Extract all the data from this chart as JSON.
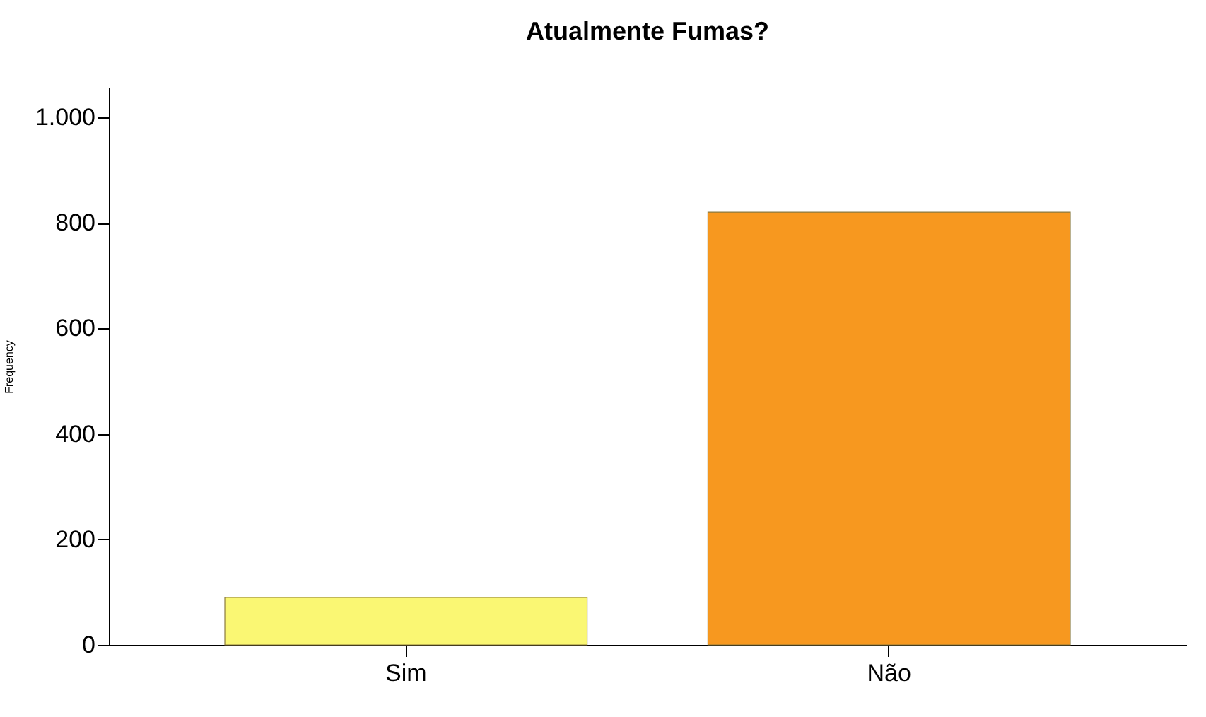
{
  "chart_data": {
    "type": "bar",
    "title": "Atualmente Fumas?",
    "ylabel": "Frequency",
    "categories": [
      "Sim",
      "Não"
    ],
    "values": [
      90,
      820
    ],
    "colors": [
      "#faf773",
      "#f7981f"
    ],
    "ylim": [
      0,
      1056
    ],
    "yticks": [
      0,
      200,
      400,
      600,
      800,
      {
        "value": 1000,
        "label": "1.000"
      }
    ],
    "grid": false
  }
}
